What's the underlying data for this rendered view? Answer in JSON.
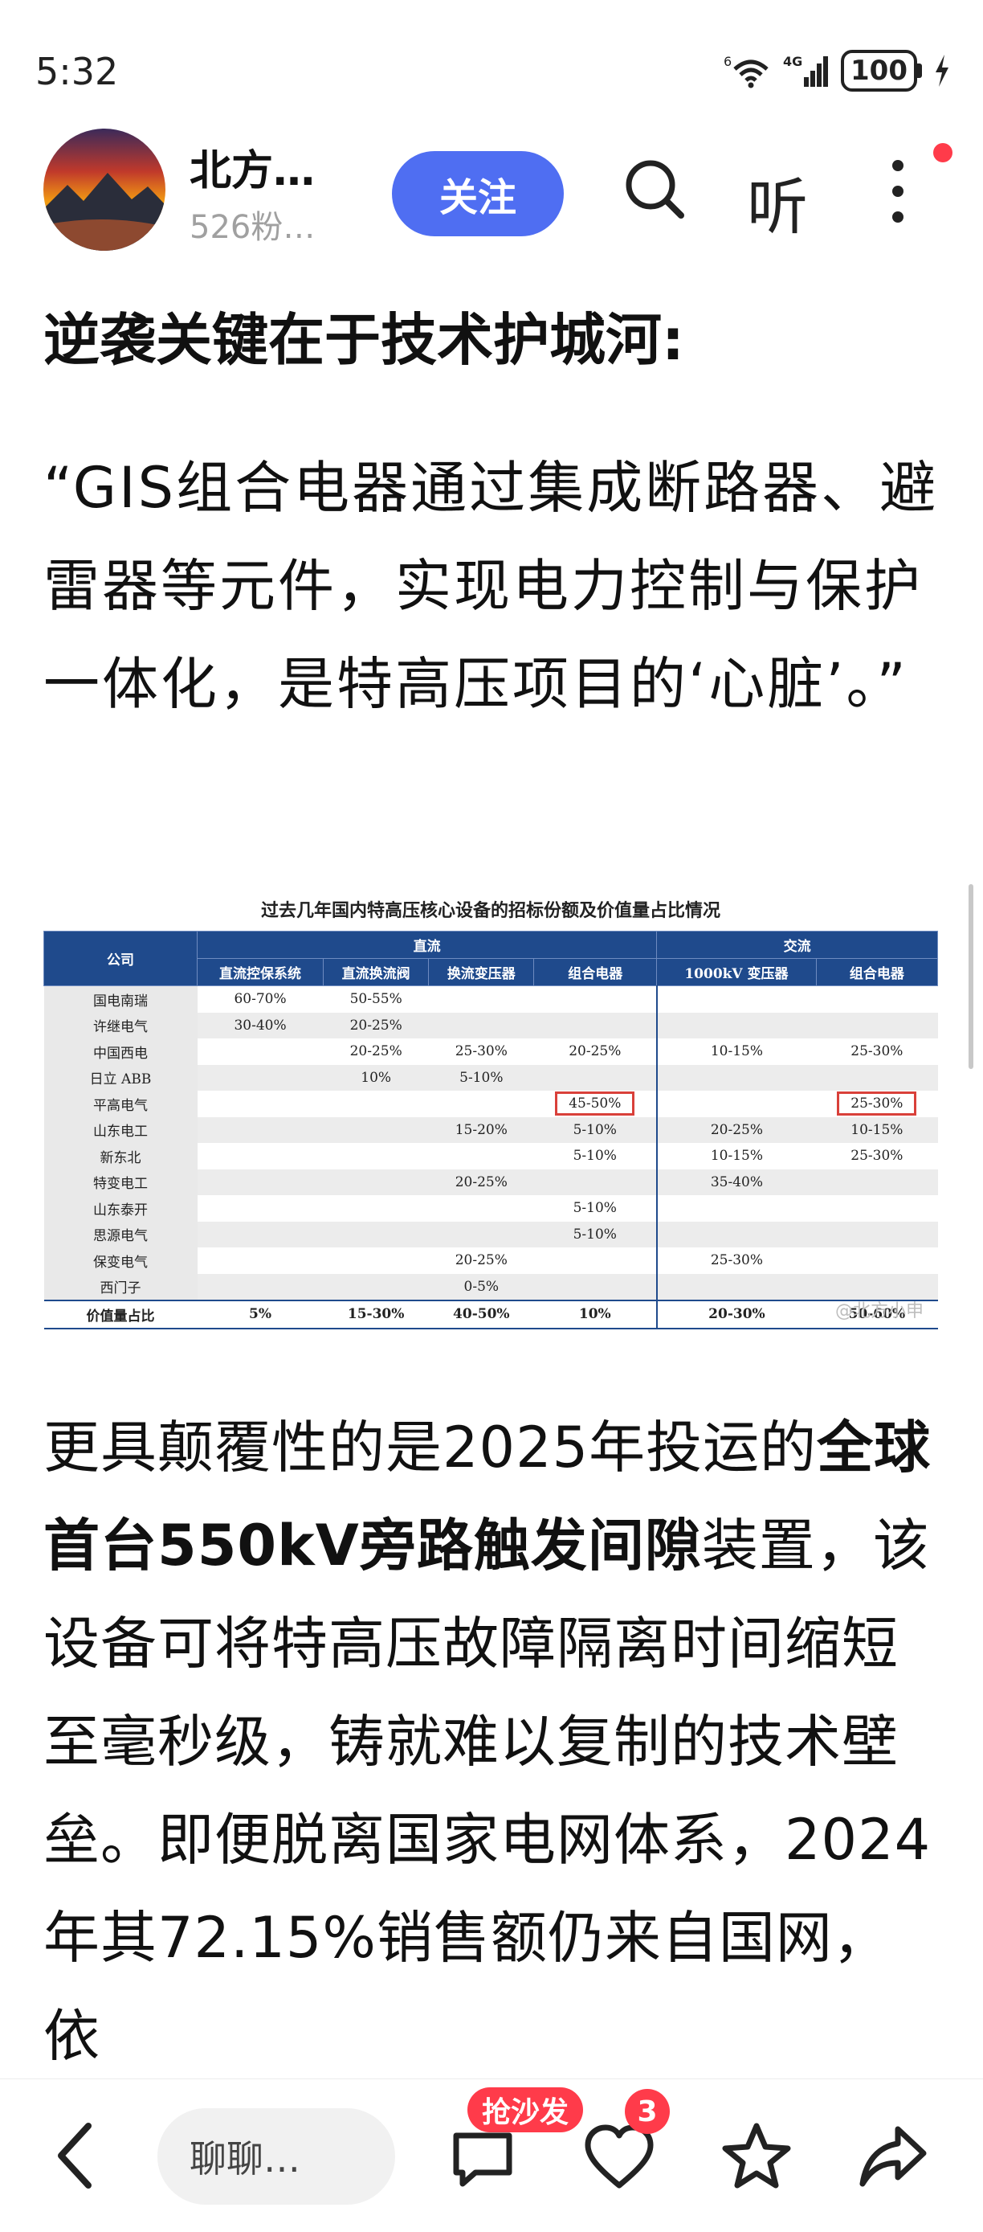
{
  "status_bar": {
    "time": "5:32",
    "wifi_label": "6",
    "network": "4G",
    "battery": "100"
  },
  "header": {
    "author_name": "北方…",
    "fans": "526粉…",
    "follow_label": "关注",
    "listen_label": "听"
  },
  "article": {
    "para1": "逆袭关键在于技术护城河:",
    "para2": "“GIS组合电器通过集成断路器、避雷器等元件，实现电力控制与保护一体化，是特高压项目的‘心脏’。”",
    "para3_part1": "更具颠覆性的是2025年投运的",
    "para3_bold": "全球首台550kV旁路触发间隙",
    "para3_part2": "装置，该设备可将特高压故障隔离时间缩短至毫秒级，铸就难以复制的技术壁垒。即便脱离国家电网体系，2024年其72.15%销售额仍来自国网，依"
  },
  "table_figure": {
    "title": "过去几年国内特高压核心设备的招标份额及价值量占比情况",
    "col_company": "公司",
    "group_dc": "直流",
    "group_ac": "交流",
    "columns": [
      "直流控保系统",
      "直流换流阀",
      "换流变压器",
      "组合电器",
      "1000kV 变压器",
      "组合电器"
    ],
    "rows": [
      [
        "国电南瑞",
        "60-70%",
        "50-55%",
        "",
        "",
        "",
        ""
      ],
      [
        "许继电气",
        "30-40%",
        "20-25%",
        "",
        "",
        "",
        ""
      ],
      [
        "中国西电",
        "",
        "20-25%",
        "25-30%",
        "20-25%",
        "10-15%",
        "25-30%"
      ],
      [
        "日立 ABB",
        "",
        "10%",
        "5-10%",
        "",
        "",
        ""
      ],
      [
        "平高电气",
        "",
        "",
        "",
        "45-50%",
        "",
        "25-30%"
      ],
      [
        "山东电工",
        "",
        "",
        "15-20%",
        "5-10%",
        "20-25%",
        "10-15%"
      ],
      [
        "新东北",
        "",
        "",
        "",
        "5-10%",
        "10-15%",
        "25-30%"
      ],
      [
        "特变电工",
        "",
        "",
        "20-25%",
        "",
        "35-40%",
        ""
      ],
      [
        "山东泰开",
        "",
        "",
        "",
        "5-10%",
        "",
        ""
      ],
      [
        "思源电气",
        "",
        "",
        "",
        "5-10%",
        "",
        ""
      ],
      [
        "保变电气",
        "",
        "",
        "20-25%",
        "",
        "25-30%",
        ""
      ],
      [
        "西门子",
        "",
        "",
        "0-5%",
        "",
        "",
        ""
      ]
    ],
    "total": [
      "价值量占比",
      "5%",
      "15-30%",
      "40-50%",
      "10%",
      "20-30%",
      "50-60%"
    ],
    "watermark": "@北方小申"
  },
  "bottom_bar": {
    "comment_placeholder": "聊聊…",
    "sofa_label": "抢沙发",
    "like_count": "3"
  },
  "colors": {
    "accent": "#4f6ef2",
    "badge": "#ff3b4a",
    "table_header": "#1f4a8c",
    "highlight_box": "#d9403a"
  }
}
